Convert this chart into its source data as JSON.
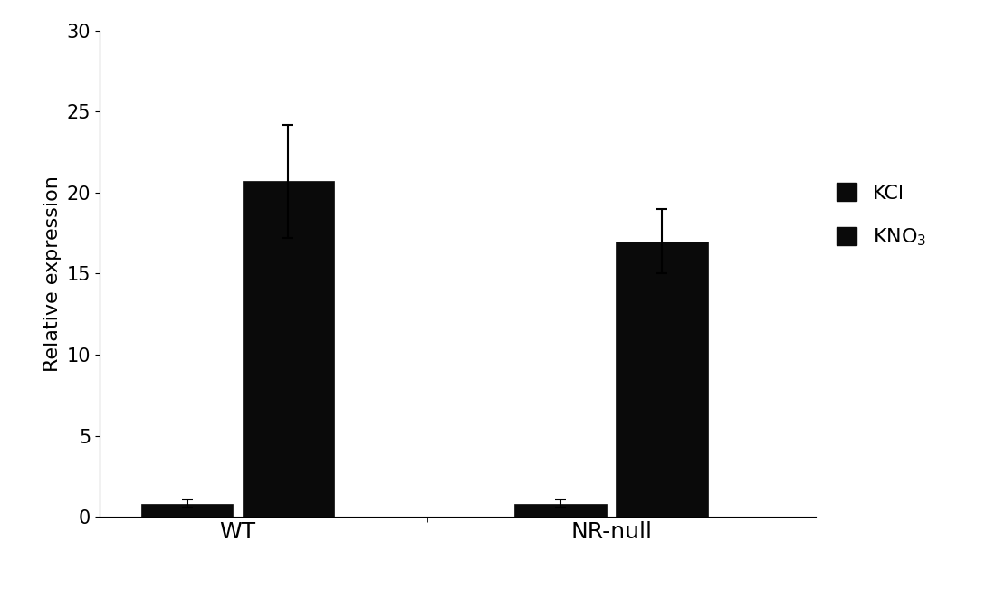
{
  "groups": [
    "WT",
    "NR-null"
  ],
  "values": {
    "WT": {
      "KCl": 0.8,
      "KNO3": 20.7
    },
    "NR-null": {
      "KCl": 0.8,
      "KNO3": 17.0
    }
  },
  "errors": {
    "WT": {
      "KCl": 0.25,
      "KNO3": 3.5
    },
    "NR-null": {
      "KCl": 0.25,
      "KNO3": 2.0
    }
  },
  "bar_color": "#0a0a0a",
  "ylabel": "Relative expression",
  "ylim": [
    0,
    30
  ],
  "yticks": [
    0,
    5,
    10,
    15,
    20,
    25,
    30
  ],
  "background_color": "#ffffff",
  "bar_width": 0.18,
  "fontsize_ticks": 15,
  "fontsize_ylabel": 16,
  "fontsize_legend": 16,
  "fontsize_xticks": 18
}
